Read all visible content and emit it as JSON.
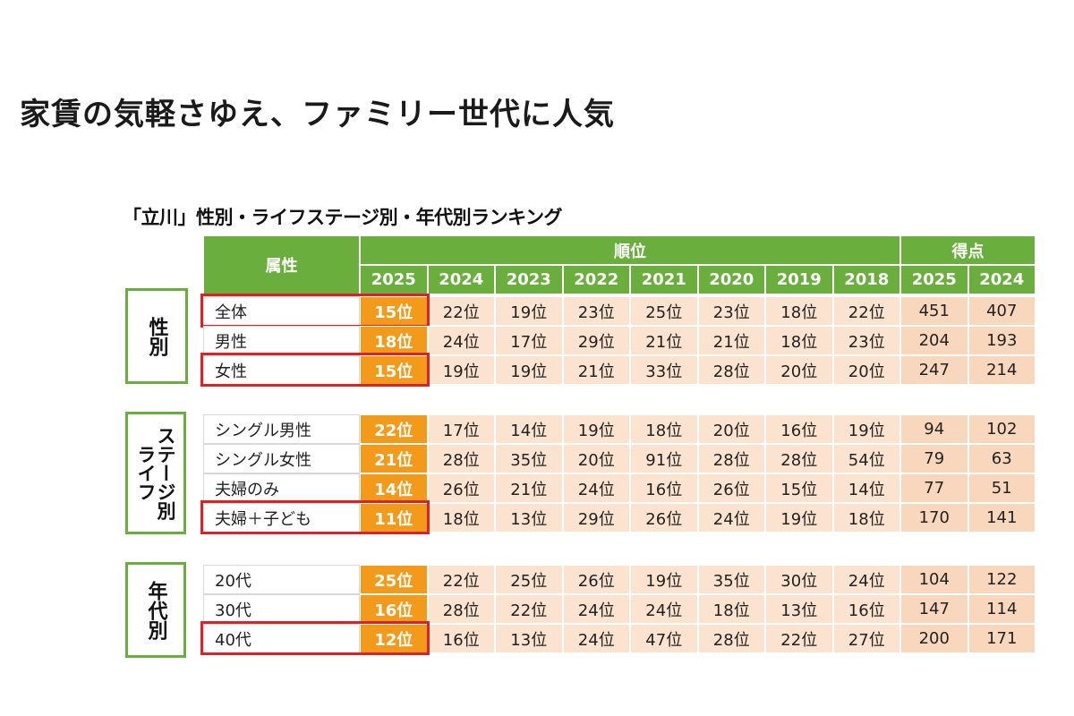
{
  "headline": "家賃の気軽さゆえ、ファミリー世代に人気",
  "subtitle": "「立川」性別・ライフステージ別・年代別ランキング",
  "header": {
    "attribute": "属性",
    "rank_group": "順位",
    "score_group": "得点",
    "rank_years": [
      "2025",
      "2024",
      "2023",
      "2022",
      "2021",
      "2020",
      "2019",
      "2018"
    ],
    "score_years": [
      "2025",
      "2024"
    ]
  },
  "groups": [
    {
      "label": "性別",
      "vertical_lines": [
        "性別"
      ],
      "rows": [
        {
          "label": "全体",
          "ranks": [
            "15位",
            "22位",
            "19位",
            "23位",
            "25位",
            "23位",
            "18位",
            "22位"
          ],
          "scores": [
            "451",
            "407"
          ],
          "highlight": true
        },
        {
          "label": "男性",
          "ranks": [
            "18位",
            "24位",
            "17位",
            "29位",
            "21位",
            "21位",
            "18位",
            "23位"
          ],
          "scores": [
            "204",
            "193"
          ],
          "highlight": false
        },
        {
          "label": "女性",
          "ranks": [
            "15位",
            "19位",
            "19位",
            "21位",
            "33位",
            "28位",
            "20位",
            "20位"
          ],
          "scores": [
            "247",
            "214"
          ],
          "highlight": true
        }
      ]
    },
    {
      "label": "ライフステージ別",
      "vertical_lines": [
        "ライフ",
        "ステージ別"
      ],
      "rows": [
        {
          "label": "シングル男性",
          "ranks": [
            "22位",
            "17位",
            "14位",
            "19位",
            "18位",
            "20位",
            "16位",
            "19位"
          ],
          "scores": [
            "94",
            "102"
          ],
          "highlight": false
        },
        {
          "label": "シングル女性",
          "ranks": [
            "21位",
            "28位",
            "35位",
            "20位",
            "91位",
            "28位",
            "28位",
            "54位"
          ],
          "scores": [
            "79",
            "63"
          ],
          "highlight": false
        },
        {
          "label": "夫婦のみ",
          "ranks": [
            "14位",
            "26位",
            "21位",
            "24位",
            "16位",
            "26位",
            "15位",
            "14位"
          ],
          "scores": [
            "77",
            "51"
          ],
          "highlight": false
        },
        {
          "label": "夫婦＋子ども",
          "ranks": [
            "11位",
            "18位",
            "13位",
            "29位",
            "26位",
            "24位",
            "19位",
            "18位"
          ],
          "scores": [
            "170",
            "141"
          ],
          "highlight": true
        }
      ]
    },
    {
      "label": "年代別",
      "vertical_lines": [
        "年代別"
      ],
      "rows": [
        {
          "label": "20代",
          "ranks": [
            "25位",
            "22位",
            "25位",
            "26位",
            "19位",
            "35位",
            "30位",
            "24位"
          ],
          "scores": [
            "104",
            "122"
          ],
          "highlight": false
        },
        {
          "label": "30代",
          "ranks": [
            "16位",
            "28位",
            "22位",
            "24位",
            "24位",
            "18位",
            "13位",
            "16位"
          ],
          "scores": [
            "147",
            "114"
          ],
          "highlight": false
        },
        {
          "label": "40代",
          "ranks": [
            "12位",
            "16位",
            "13位",
            "24位",
            "47位",
            "28位",
            "22位",
            "27位"
          ],
          "scores": [
            "200",
            "171"
          ],
          "highlight": true
        }
      ]
    }
  ],
  "colors": {
    "header_green": "#6aaf3d",
    "rank_2025_orange": "#f39a1b",
    "rank_cell": "#fbe3d0",
    "score_cell": "#f8d7bd",
    "highlight_red": "#d8232a"
  }
}
